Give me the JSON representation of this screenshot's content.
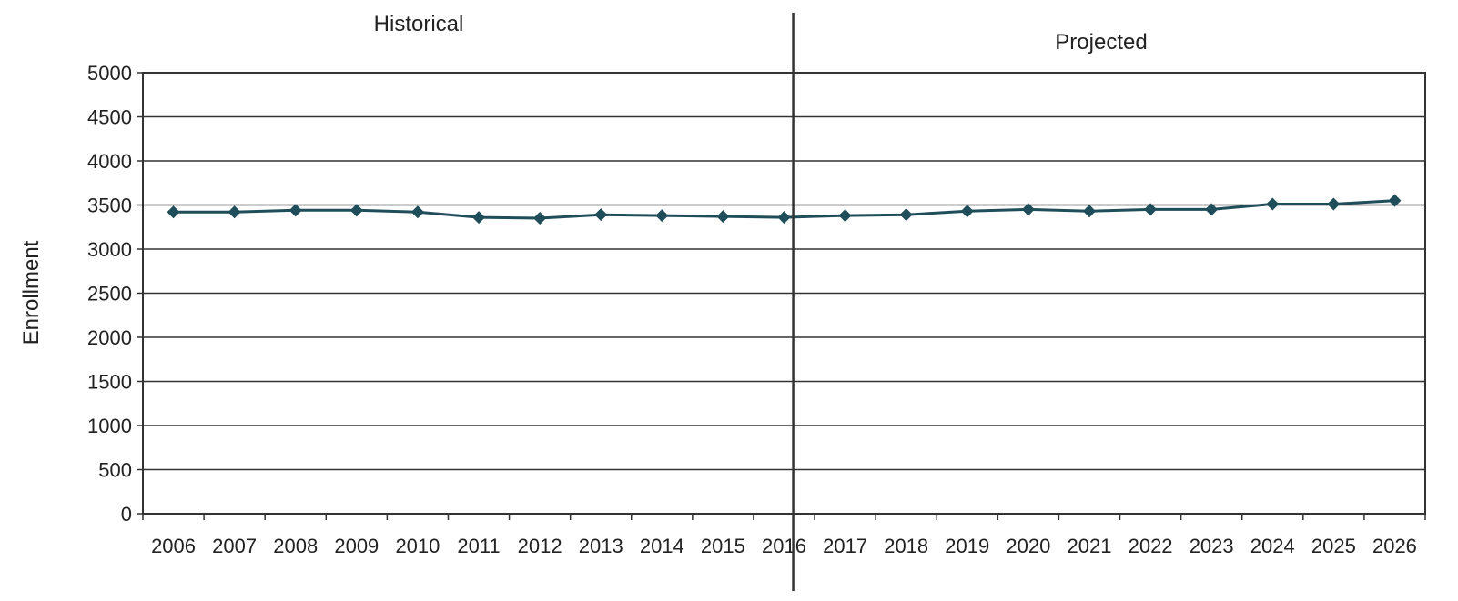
{
  "chart_data": {
    "type": "line",
    "title": "",
    "xlabel": "",
    "ylabel": "Enrollment",
    "ylim": [
      0,
      5000
    ],
    "yticks": [
      0,
      500,
      1000,
      1500,
      2000,
      2500,
      3000,
      3500,
      4000,
      4500,
      5000
    ],
    "grid": true,
    "legend": "none",
    "categories": [
      "2006",
      "2007",
      "2008",
      "2009",
      "2010",
      "2011",
      "2012",
      "2013",
      "2014",
      "2015",
      "2016",
      "2017",
      "2018",
      "2019",
      "2020",
      "2021",
      "2022",
      "2023",
      "2024",
      "2025",
      "2026"
    ],
    "series": [
      {
        "values": [
          3420,
          3420,
          3440,
          3440,
          3420,
          3360,
          3350,
          3390,
          3380,
          3370,
          3360,
          3380,
          3390,
          3430,
          3450,
          3430,
          3450,
          3450,
          3510,
          3510,
          3550
        ],
        "color": "#1f4e5a",
        "marker": "diamond"
      }
    ],
    "sections": [
      {
        "label": "Historical"
      },
      {
        "label": "Projected"
      }
    ],
    "divider_after": "2016"
  }
}
